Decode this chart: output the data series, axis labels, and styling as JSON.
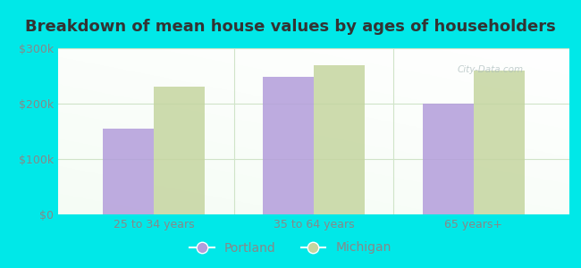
{
  "title": "Breakdown of mean house values by ages of householders",
  "categories": [
    "25 to 34 years",
    "35 to 64 years",
    "65 years+"
  ],
  "portland_values": [
    155000,
    248000,
    200000
  ],
  "michigan_values": [
    230000,
    270000,
    260000
  ],
  "portland_color": "#b39ddb",
  "michigan_color": "#c5d5a0",
  "background_color": "#00e8e8",
  "ylim": [
    0,
    300000
  ],
  "yticks": [
    0,
    100000,
    200000,
    300000
  ],
  "ytick_labels": [
    "$0",
    "$100k",
    "$200k",
    "$300k"
  ],
  "bar_width": 0.32,
  "legend_labels": [
    "Portland",
    "Michigan"
  ],
  "title_fontsize": 13,
  "tick_fontsize": 9,
  "legend_fontsize": 10,
  "watermark": "City-Data.com",
  "title_color": "#333333",
  "tick_color": "#888888"
}
